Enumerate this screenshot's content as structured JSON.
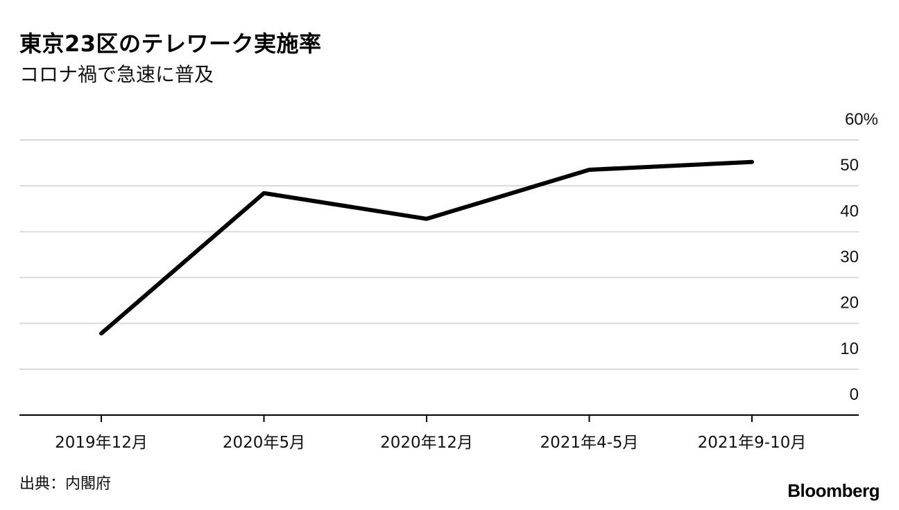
{
  "header": {
    "title": "東京23区のテレワーク実施率",
    "subtitle": "コロナ禍で急速に普及"
  },
  "footer": {
    "source": "出典：内閣府",
    "brand": "Bloomberg"
  },
  "colors": {
    "line": "#000000",
    "grid": "#d9d9d9",
    "axis": "#000000"
  },
  "chart_data": {
    "type": "line",
    "title": "東京23区のテレワーク実施率",
    "subtitle": "コロナ禍で急速に普及",
    "categories": [
      "2019年12月",
      "2020年5月",
      "2020年12月",
      "2021年4-5月",
      "2021年9-10月"
    ],
    "series": [
      {
        "values": [
          17.8,
          48.4,
          42.8,
          53.5,
          55.2
        ]
      }
    ],
    "ylim": [
      0,
      60
    ],
    "yticks": [
      "0",
      "10",
      "20",
      "30",
      "40",
      "50",
      "60%"
    ],
    "grid": true,
    "y_axis_position": "right"
  }
}
